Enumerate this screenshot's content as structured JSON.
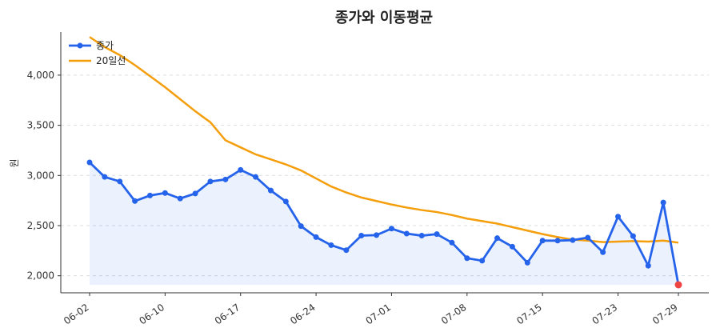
{
  "chart_data": {
    "type": "line",
    "title": "종가와 이동평균",
    "xlabel": "",
    "ylabel": "원",
    "ylim": [
      1830,
      4430
    ],
    "yticks": [
      2000,
      2500,
      3000,
      3500,
      4000
    ],
    "ytick_labels": [
      "2,000",
      "2,500",
      "3,000",
      "3,500",
      "4,000"
    ],
    "xtick_labels": [
      "06-02",
      "06-10",
      "06-17",
      "06-24",
      "07-01",
      "07-08",
      "07-15",
      "07-23",
      "07-29"
    ],
    "xtick_index": [
      0,
      5,
      10,
      15,
      20,
      25,
      30,
      35,
      39
    ],
    "grid": "horizontal dashed",
    "legend_position": "top-left",
    "series": [
      {
        "name": "종가",
        "color": "#2563eb",
        "values": [
          3130,
          2985,
          2940,
          2745,
          2800,
          2825,
          2770,
          2820,
          2940,
          2960,
          3055,
          2985,
          2850,
          2740,
          2495,
          2385,
          2305,
          2255,
          2400,
          2405,
          2470,
          2420,
          2400,
          2415,
          2330,
          2175,
          2150,
          2375,
          2290,
          2130,
          2350,
          2350,
          2355,
          2380,
          2235,
          2590,
          2395,
          2100,
          2730,
          1910
        ]
      },
      {
        "name": "20일선",
        "color": "#f59e0b",
        "values": [
          4380,
          4280,
          4200,
          4100,
          3990,
          3880,
          3760,
          3640,
          3530,
          3350,
          3280,
          3210,
          3160,
          3110,
          3050,
          2970,
          2890,
          2830,
          2780,
          2745,
          2710,
          2680,
          2655,
          2635,
          2605,
          2570,
          2545,
          2520,
          2485,
          2450,
          2415,
          2385,
          2360,
          2350,
          2335,
          2340,
          2345,
          2340,
          2350,
          2330
        ]
      }
    ],
    "last_point_color": "#ef4444"
  }
}
